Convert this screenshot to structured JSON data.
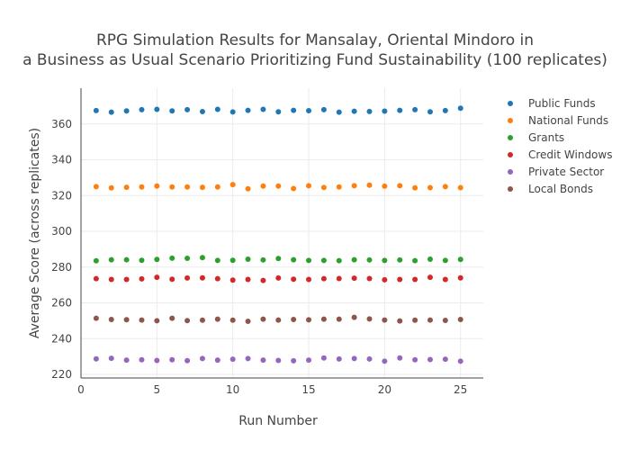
{
  "chart_data": {
    "type": "scatter",
    "title_line1": "RPG Simulation Results for Mansalay, Oriental Mindoro in",
    "title_line2": "a Business as Usual Scenario Prioritizing Fund Sustainability (100 replicates)",
    "xlabel": "Run Number",
    "ylabel": "Average Score (across replicates)",
    "xlim": [
      0,
      26.5
    ],
    "ylim": [
      218,
      380
    ],
    "xticks": [
      0,
      5,
      10,
      15,
      20,
      25
    ],
    "yticks": [
      220,
      240,
      260,
      280,
      300,
      320,
      340,
      360
    ],
    "grid": true,
    "legend_position": "top-right",
    "x": [
      1,
      2,
      3,
      4,
      5,
      6,
      7,
      8,
      9,
      10,
      11,
      12,
      13,
      14,
      15,
      16,
      17,
      18,
      19,
      20,
      21,
      22,
      23,
      24,
      25
    ],
    "series": [
      {
        "name": "Public Funds",
        "color": "#1f77b4",
        "values": [
          367.5,
          366.6,
          367.3,
          368.0,
          368.2,
          367.3,
          368.0,
          366.9,
          368.2,
          366.7,
          367.6,
          368.2,
          366.8,
          367.6,
          367.4,
          368.0,
          366.6,
          367.1,
          367.0,
          367.2,
          367.6,
          368.0,
          366.8,
          367.5,
          368.8
        ]
      },
      {
        "name": "National Funds",
        "color": "#ff7f0e",
        "values": [
          325.0,
          324.3,
          324.6,
          324.8,
          325.3,
          324.8,
          324.8,
          324.6,
          324.8,
          326.1,
          323.8,
          325.3,
          325.3,
          323.9,
          325.5,
          324.5,
          324.8,
          325.5,
          325.8,
          325.2,
          325.5,
          324.3,
          324.4,
          325.0,
          324.4
        ]
      },
      {
        "name": "Grants",
        "color": "#2ca02c",
        "values": [
          283.5,
          284.1,
          284.1,
          283.8,
          284.3,
          285.0,
          284.9,
          285.3,
          283.7,
          283.8,
          284.4,
          284.0,
          284.8,
          284.1,
          283.7,
          283.7,
          283.6,
          284.1,
          284.0,
          283.7,
          284.0,
          283.6,
          284.4,
          283.7,
          284.3
        ]
      },
      {
        "name": "Credit Windows",
        "color": "#d62728",
        "values": [
          273.5,
          273.1,
          273.1,
          273.4,
          274.3,
          273.2,
          273.9,
          274.0,
          273.5,
          272.7,
          273.1,
          272.5,
          273.9,
          273.2,
          273.1,
          273.5,
          273.6,
          273.8,
          273.6,
          272.9,
          273.1,
          273.1,
          274.3,
          273.1,
          274.0
        ]
      },
      {
        "name": "Private Sector",
        "color": "#9467bd",
        "values": [
          228.7,
          229.0,
          228.0,
          228.2,
          227.8,
          228.2,
          227.7,
          228.9,
          228.0,
          228.5,
          228.9,
          228.0,
          227.8,
          227.6,
          228.0,
          229.2,
          228.6,
          228.9,
          228.6,
          227.4,
          229.2,
          228.2,
          228.3,
          228.5,
          227.4
        ]
      },
      {
        "name": "Local Bonds",
        "color": "#8c564b",
        "values": [
          251.4,
          250.7,
          250.6,
          250.4,
          250.0,
          251.4,
          250.1,
          250.3,
          250.9,
          250.3,
          249.7,
          250.9,
          250.4,
          250.7,
          250.5,
          250.9,
          250.9,
          251.9,
          251.0,
          250.4,
          249.9,
          250.3,
          250.4,
          250.2,
          250.7
        ]
      }
    ]
  }
}
